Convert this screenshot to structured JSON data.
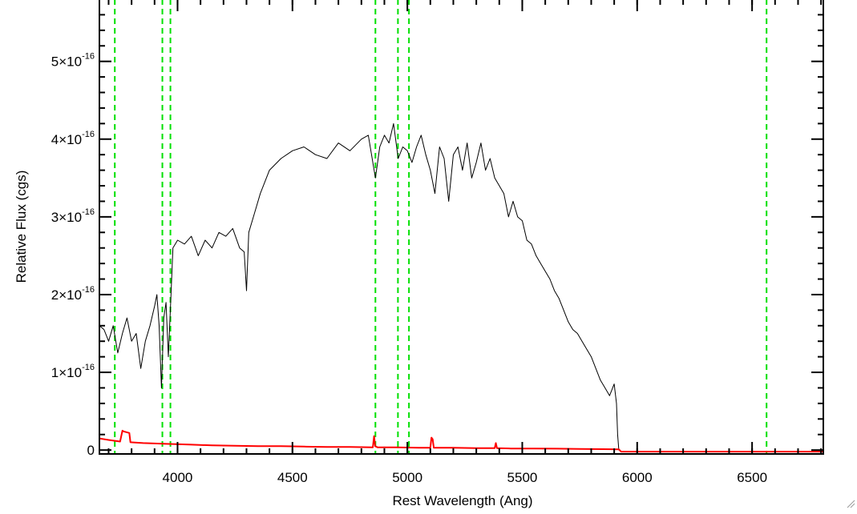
{
  "chart_data": {
    "type": "line",
    "title": "",
    "xlabel": "Rest Wavelength (Ang)",
    "ylabel": "Relative Flux (cgs)",
    "xlim": [
      3660,
      6810
    ],
    "ylim": [
      -5e-18,
      5.8e-16
    ],
    "grid": false,
    "x_ticks": [
      {
        "value": 4000,
        "label": "4000"
      },
      {
        "value": 4500,
        "label": "4500"
      },
      {
        "value": 5000,
        "label": "5000"
      },
      {
        "value": 5500,
        "label": "5500"
      },
      {
        "value": 6000,
        "label": "6000"
      },
      {
        "value": 6500,
        "label": "6500"
      }
    ],
    "y_ticks": [
      {
        "value": 0,
        "mantissa": "0",
        "exponent": ""
      },
      {
        "value": 1e-16,
        "mantissa": "1×10",
        "exponent": "-16"
      },
      {
        "value": 2e-16,
        "mantissa": "2×10",
        "exponent": "-16"
      },
      {
        "value": 3e-16,
        "mantissa": "3×10",
        "exponent": "-16"
      },
      {
        "value": 4e-16,
        "mantissa": "4×10",
        "exponent": "-16"
      },
      {
        "value": 5e-16,
        "mantissa": "5×10",
        "exponent": "-16"
      }
    ],
    "series": [
      {
        "color": "#000000",
        "x": [
          3660,
          3680,
          3700,
          3720,
          3740,
          3760,
          3780,
          3800,
          3820,
          3840,
          3860,
          3880,
          3900,
          3910,
          3920,
          3930,
          3940,
          3950,
          3960,
          3970,
          3980,
          4000,
          4030,
          4060,
          4090,
          4120,
          4150,
          4180,
          4210,
          4240,
          4270,
          4290,
          4300,
          4310,
          4330,
          4360,
          4400,
          4450,
          4500,
          4550,
          4600,
          4650,
          4700,
          4750,
          4800,
          4830,
          4861,
          4880,
          4900,
          4920,
          4940,
          4960,
          4980,
          5000,
          5020,
          5040,
          5060,
          5080,
          5100,
          5120,
          5140,
          5160,
          5180,
          5200,
          5220,
          5240,
          5260,
          5280,
          5300,
          5320,
          5340,
          5360,
          5380,
          5400,
          5420,
          5440,
          5460,
          5480,
          5500,
          5520,
          5540,
          5560,
          5580,
          5600,
          5620,
          5640,
          5660,
          5680,
          5700,
          5720,
          5740,
          5760,
          5780,
          5800,
          5820,
          5840,
          5860,
          5880,
          5900,
          5910,
          5915,
          5920,
          5925
        ],
        "y": [
          1.6e-16,
          1.55e-16,
          1.4e-16,
          1.6e-16,
          1.25e-16,
          1.5e-16,
          1.7e-16,
          1.4e-16,
          1.5e-16,
          1.05e-16,
          1.4e-16,
          1.6e-16,
          1.85e-16,
          2e-16,
          1.6e-16,
          8e-17,
          1.7e-16,
          1.9e-16,
          1.2e-16,
          1.9e-16,
          2.6e-16,
          2.7e-16,
          2.65e-16,
          2.75e-16,
          2.5e-16,
          2.7e-16,
          2.6e-16,
          2.8e-16,
          2.75e-16,
          2.85e-16,
          2.6e-16,
          2.55e-16,
          2.05e-16,
          2.8e-16,
          3e-16,
          3.3e-16,
          3.6e-16,
          3.75e-16,
          3.85e-16,
          3.9e-16,
          3.8e-16,
          3.75e-16,
          3.95e-16,
          3.85e-16,
          4e-16,
          4.05e-16,
          3.5e-16,
          3.9e-16,
          4.05e-16,
          3.95e-16,
          4.2e-16,
          3.75e-16,
          3.9e-16,
          3.85e-16,
          3.7e-16,
          3.9e-16,
          4.05e-16,
          3.8e-16,
          3.6e-16,
          3.3e-16,
          3.9e-16,
          3.75e-16,
          3.2e-16,
          3.8e-16,
          3.9e-16,
          3.6e-16,
          3.95e-16,
          3.5e-16,
          3.7e-16,
          3.95e-16,
          3.6e-16,
          3.75e-16,
          3.5e-16,
          3.4e-16,
          3.3e-16,
          3e-16,
          3.2e-16,
          3e-16,
          2.95e-16,
          2.7e-16,
          2.65e-16,
          2.5e-16,
          2.4e-16,
          2.3e-16,
          2.2e-16,
          2.05e-16,
          1.95e-16,
          1.8e-16,
          1.65e-16,
          1.55e-16,
          1.5e-16,
          1.4e-16,
          1.3e-16,
          1.2e-16,
          1.05e-16,
          9e-17,
          8e-17,
          7e-17,
          8.5e-17,
          6e-17,
          2e-17,
          0.0,
          0.0
        ]
      },
      {
        "color": "#ff0000",
        "x": [
          3660,
          3700,
          3750,
          3760,
          3765,
          3790,
          3795,
          3850,
          3950,
          4050,
          4150,
          4250,
          4350,
          4450,
          4550,
          4650,
          4750,
          4850,
          4855,
          4860,
          4870,
          4950,
          5050,
          5100,
          5105,
          5110,
          5115,
          5200,
          5300,
          5380,
          5385,
          5390,
          5450,
          5550,
          5650,
          5750,
          5850,
          5920,
          5930,
          6200,
          6500,
          6810
        ],
        "y": [
          1.5e-17,
          1.3e-17,
          1.1e-17,
          2.5e-17,
          2.4e-17,
          2.2e-17,
          1e-17,
          9e-18,
          8e-18,
          7e-18,
          6e-18,
          5.5e-18,
          5e-18,
          5e-18,
          4.5e-18,
          4e-18,
          4e-18,
          3.5e-18,
          1.8e-17,
          5e-18,
          3.5e-18,
          3.5e-18,
          3e-18,
          3e-18,
          1.6e-17,
          1.4e-17,
          3e-18,
          3e-18,
          2.5e-18,
          2.5e-18,
          9e-18,
          2.5e-18,
          2e-18,
          2e-18,
          1.8e-18,
          1.5e-18,
          1.2e-18,
          1e-18,
          -2e-18,
          -2e-18,
          -2e-18,
          -2e-18
        ]
      }
    ],
    "vlines": {
      "color": "#00e000",
      "style": "dashed",
      "x": [
        3727,
        3934,
        3969,
        4861,
        4959,
        5007,
        6563
      ]
    }
  }
}
